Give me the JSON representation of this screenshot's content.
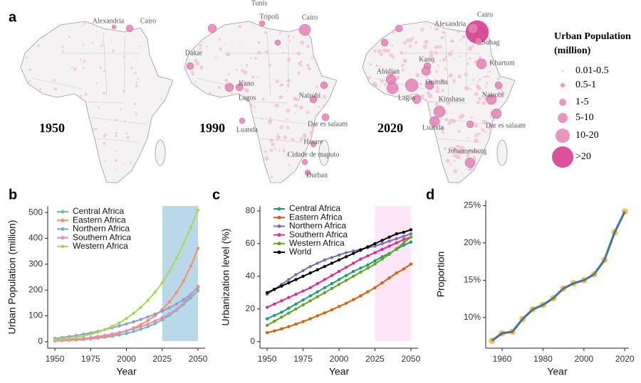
{
  "panel_labels": [
    "a",
    "b",
    "c",
    "d"
  ],
  "map": {
    "years": [
      "1950",
      "1990",
      "2020"
    ],
    "cities": [
      [
        "Alexandria",
        "Cairo"
      ],
      [
        "Tunis",
        "Tripoli",
        "Cairo",
        "Dakar",
        "Kano",
        "Lagos",
        "Nairobi",
        "Luanda",
        "Dar es salaam",
        "Harare",
        "Cidade de maputo",
        "Durban"
      ],
      [
        "Cairo",
        "Alexandria",
        "Suhag",
        "Kano",
        "Khartum",
        "Abidjan",
        "Onitsha",
        "Lagos",
        "Kinshasa",
        "Nairobi",
        "Luanda",
        "Dar es salaam",
        "Johannesburg"
      ]
    ],
    "legend_title": [
      "Urban Population",
      "(million)"
    ],
    "legend_labels": [
      "0.01-0.5",
      "0.5-1",
      "1-5",
      "5-10",
      "10-20",
      ">20"
    ]
  },
  "chart_data": [
    {
      "type": "line",
      "x_label": "Year",
      "y_label": "Urban Population (million)",
      "x": [
        1950,
        1955,
        1960,
        1965,
        1970,
        1975,
        1980,
        1985,
        1990,
        1995,
        2000,
        2005,
        2010,
        2015,
        2020,
        2025,
        2030,
        2035,
        2040,
        2045,
        2050
      ],
      "xlim": [
        1945,
        2055
      ],
      "xticks": [
        1950,
        1975,
        2000,
        2025,
        2050
      ],
      "ylim": [
        -25,
        525
      ],
      "yticks": [
        0,
        100,
        200,
        300,
        400,
        500
      ],
      "highlight_range": [
        2025,
        2050
      ],
      "highlight_color": "#b9d8ea",
      "legend": "upper left",
      "series": [
        {
          "name": "Central Africa",
          "color": "#66c2a5",
          "values": [
            4,
            5,
            6,
            7,
            9,
            11,
            14,
            17,
            21,
            26,
            32,
            39,
            48,
            58,
            70,
            85,
            102,
            122,
            145,
            170,
            198
          ]
        },
        {
          "name": "Eastern Africa",
          "color": "#fc8d62",
          "values": [
            3,
            4,
            5,
            7,
            9,
            12,
            16,
            20,
            26,
            33,
            42,
            53,
            66,
            82,
            101,
            124,
            154,
            190,
            236,
            293,
            362
          ]
        },
        {
          "name": "Northern Africa",
          "color": "#8da0cb",
          "values": [
            13,
            16,
            20,
            24,
            29,
            34,
            40,
            47,
            54,
            61,
            69,
            77,
            86,
            96,
            107,
            118,
            131,
            146,
            163,
            184,
            210
          ]
        },
        {
          "name": "Southern Africa",
          "color": "#e78ac3",
          "values": [
            5,
            6,
            8,
            10,
            13,
            16,
            20,
            25,
            30,
            36,
            42,
            50,
            58,
            68,
            80,
            93,
            108,
            126,
            150,
            180,
            215
          ]
        },
        {
          "name": "Western Africa",
          "color": "#a6d854",
          "values": [
            8,
            10,
            13,
            17,
            22,
            29,
            37,
            47,
            59,
            73,
            90,
            110,
            133,
            160,
            192,
            228,
            272,
            323,
            380,
            442,
            510
          ]
        }
      ]
    },
    {
      "type": "line",
      "x_label": "Year",
      "y_label": "Urbanization level (%)",
      "x": [
        1950,
        1955,
        1960,
        1965,
        1970,
        1975,
        1980,
        1985,
        1990,
        1995,
        2000,
        2005,
        2010,
        2015,
        2020,
        2025,
        2030,
        2035,
        2040,
        2045,
        2050
      ],
      "xlim": [
        1945,
        2055
      ],
      "xticks": [
        1950,
        1975,
        2000,
        2025,
        2050
      ],
      "ylim": [
        -4,
        83
      ],
      "yticks": [
        0,
        20,
        40,
        60,
        80
      ],
      "highlight_range": [
        2025,
        2050
      ],
      "highlight_color": "#fde6f8",
      "legend": "upper left",
      "series": [
        {
          "name": "Central Africa",
          "color": "#1b9e77",
          "values": [
            14,
            16,
            18,
            20.5,
            23,
            25.5,
            28,
            30.5,
            33,
            35.5,
            38,
            40.5,
            43,
            45,
            47,
            49.5,
            52,
            54,
            56.5,
            59,
            61
          ]
        },
        {
          "name": "Eastern Africa",
          "color": "#d95f02",
          "values": [
            5.5,
            6.5,
            7.8,
            9.2,
            10.7,
            12.3,
            14,
            15.8,
            17.6,
            19.5,
            21.5,
            23.5,
            25.7,
            28,
            30.5,
            33,
            36,
            39,
            42,
            44.5,
            47.5
          ]
        },
        {
          "name": "Northern Africa",
          "color": "#7570b3",
          "values": [
            29,
            32,
            35,
            38,
            41,
            43.5,
            46,
            48,
            50,
            51.5,
            53,
            54.5,
            55.5,
            56.5,
            57.5,
            58.5,
            60,
            61.5,
            63,
            64.5,
            66
          ]
        },
        {
          "name": "Southern Africa",
          "color": "#e7298a",
          "values": [
            21,
            23,
            25,
            27,
            29,
            31,
            33,
            35.5,
            38,
            40.5,
            43,
            45.5,
            48,
            50.5,
            52.5,
            54.5,
            56.5,
            58.5,
            60.5,
            62.5,
            64
          ]
        },
        {
          "name": "Western Africa",
          "color": "#66a61e",
          "values": [
            10,
            12.5,
            15,
            17.5,
            20,
            22.5,
            25,
            27.5,
            30,
            32.5,
            35,
            37.5,
            40,
            42.5,
            45,
            47.5,
            50.5,
            53.5,
            57,
            60.5,
            64
          ]
        },
        {
          "name": "World",
          "color": "#000000",
          "values": [
            30,
            32,
            34,
            36,
            38,
            40,
            42,
            44,
            46,
            48,
            50,
            52,
            54,
            56,
            58,
            60,
            62,
            64,
            66,
            67,
            68.5
          ]
        }
      ]
    },
    {
      "type": "line",
      "x_label": "Year",
      "y_label": "Proportion",
      "x": [
        1955,
        1960,
        1965,
        1970,
        1975,
        1980,
        1985,
        1990,
        1995,
        2000,
        2005,
        2010,
        2015,
        2020
      ],
      "xlim": [
        1952,
        2022
      ],
      "xticks": [
        1960,
        1980,
        2000,
        2020
      ],
      "ylim": [
        5.9,
        25.7
      ],
      "yticks": [
        {
          "value": 10,
          "label": "10%"
        },
        {
          "value": 15,
          "label": "15%"
        },
        {
          "value": 20,
          "label": "20%"
        },
        {
          "value": 25,
          "label": "25%"
        }
      ],
      "point_color": "#f2c14e",
      "series": [
        {
          "color": "#4a74a0",
          "values": [
            6.9,
            7.9,
            8.1,
            9.8,
            11.1,
            11.7,
            12.6,
            13.9,
            14.6,
            15.0,
            15.8,
            17.7,
            21.4,
            24.2
          ]
        }
      ]
    }
  ]
}
